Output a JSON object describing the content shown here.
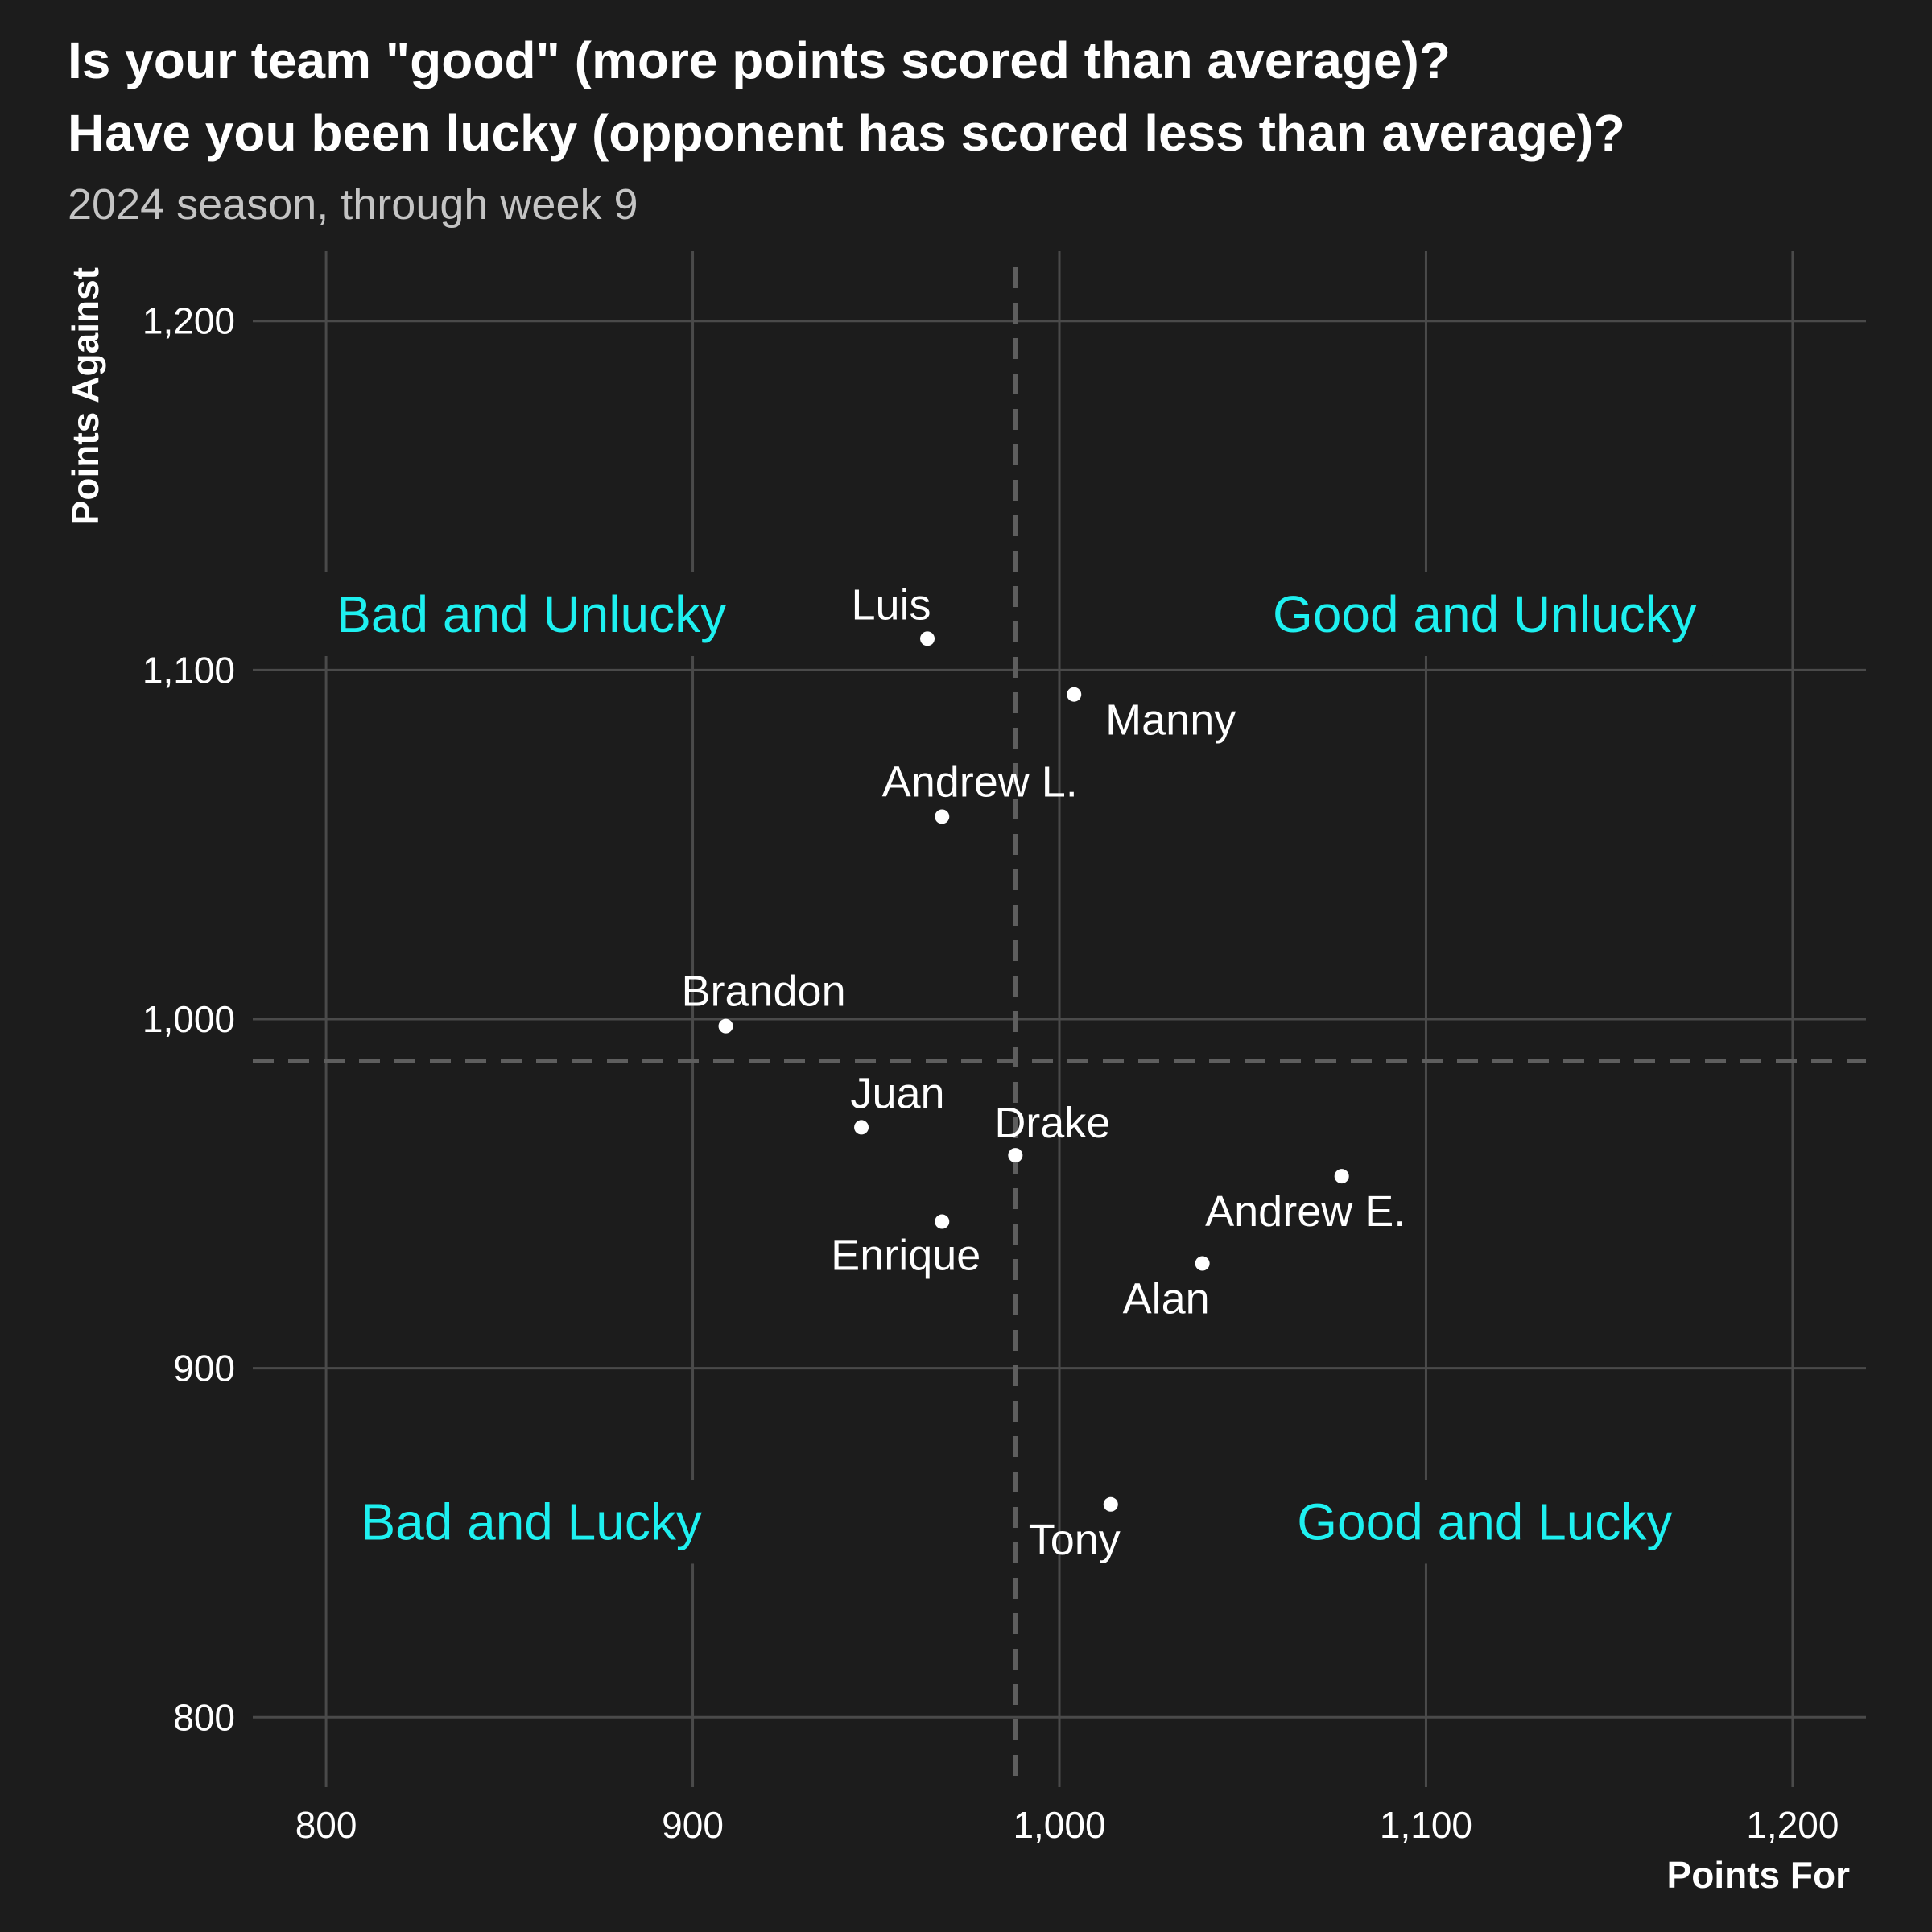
{
  "chart_data": {
    "type": "scatter",
    "title_lines": [
      "Is your team \"good\" (more points scored than average)?",
      "Have you been lucky (opponent has scored less than average)?"
    ],
    "subtitle": "2024 season, through week 9",
    "xlabel": "Points For",
    "ylabel": "Points Against",
    "xlim": [
      780,
      1220
    ],
    "ylim": [
      780,
      1220
    ],
    "x_ticks": [
      800,
      900,
      1000,
      1100,
      1200
    ],
    "x_tick_labels": [
      "800",
      "900",
      "1,000",
      "1,100",
      "1,200"
    ],
    "y_ticks": [
      800,
      900,
      1000,
      1100,
      1200
    ],
    "y_tick_labels": [
      "800",
      "900",
      "1,000",
      "1,100",
      "1,200"
    ],
    "grid": true,
    "average_points_for": 988,
    "average_points_against": 988,
    "point_color": "#ffffff",
    "quadrant_color": "#1ef0f0",
    "quadrants": [
      {
        "name": "Bad and Unlucky",
        "position": "top-left",
        "x": 856,
        "y": 1116
      },
      {
        "name": "Good and Unlucky",
        "position": "top-right",
        "x": 1116,
        "y": 1116
      },
      {
        "name": "Bad and Lucky",
        "position": "bottom-left",
        "x": 856,
        "y": 856
      },
      {
        "name": "Good and Lucky",
        "position": "bottom-right",
        "x": 1116,
        "y": 856
      }
    ],
    "points": [
      {
        "name": "Luis",
        "x": 964,
        "y": 1109,
        "label_side": "above-left"
      },
      {
        "name": "Manny",
        "x": 1004,
        "y": 1093,
        "label_side": "below-right"
      },
      {
        "name": "Andrew L.",
        "x": 968,
        "y": 1058,
        "label_side": "above"
      },
      {
        "name": "Brandon",
        "x": 909,
        "y": 998,
        "label_side": "above"
      },
      {
        "name": "Juan",
        "x": 946,
        "y": 969,
        "label_side": "above-right"
      },
      {
        "name": "Drake",
        "x": 988,
        "y": 961,
        "label_side": "above-right"
      },
      {
        "name": "Andrew E.",
        "x": 1077,
        "y": 955,
        "label_side": "below-left"
      },
      {
        "name": "Enrique",
        "x": 968,
        "y": 942,
        "label_side": "below-left"
      },
      {
        "name": "Alan",
        "x": 1039,
        "y": 930,
        "label_side": "below-left"
      },
      {
        "name": "Tony",
        "x": 1014,
        "y": 861,
        "label_side": "below-left"
      }
    ]
  }
}
